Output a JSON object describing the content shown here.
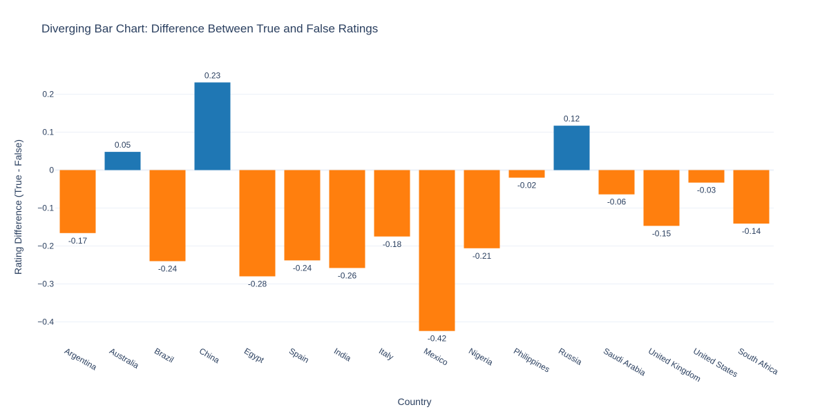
{
  "chart_data": {
    "type": "bar",
    "title": "Diverging Bar Chart: Difference Between True and False Ratings",
    "xlabel": "Country",
    "ylabel": "Rating Difference (True - False)",
    "categories": [
      "Argentina",
      "Australia",
      "Brazil",
      "China",
      "Egypt",
      "Spain",
      "India",
      "Italy",
      "Mexico",
      "Nigeria",
      "Philippines",
      "Russia",
      "Saudi Arabia",
      "United Kingdom",
      "United States",
      "South Africa"
    ],
    "values": [
      -0.166,
      0.048,
      -0.24,
      0.231,
      -0.28,
      -0.238,
      -0.258,
      -0.175,
      -0.424,
      -0.206,
      -0.02,
      0.117,
      -0.064,
      -0.147,
      -0.033,
      -0.141
    ],
    "labels": [
      "-0.17",
      "0.05",
      "-0.24",
      "0.23",
      "-0.28",
      "-0.24",
      "-0.26",
      "-0.18",
      "-0.42",
      "-0.21",
      "-0.02",
      "0.12",
      "-0.06",
      "-0.15",
      "-0.03",
      "-0.14"
    ],
    "yticks": [
      0.2,
      0.1,
      0,
      -0.1,
      -0.2,
      -0.3,
      -0.4
    ],
    "ytick_labels": [
      "0.2",
      "0.1",
      "0",
      "−0.1",
      "−0.2",
      "−0.3",
      "−0.4"
    ],
    "ylim": [
      -0.445,
      0.255
    ],
    "grid": true,
    "colors": {
      "positive": "#1f77b4",
      "negative": "#ff7f0e",
      "grid": "#ebf0f8",
      "text": "#2a3f5f"
    }
  }
}
